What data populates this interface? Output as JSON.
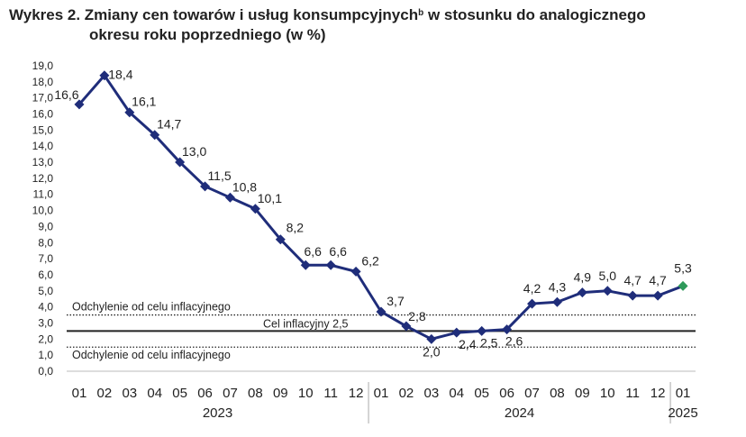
{
  "title": {
    "line1_main": "Wykres 2. Zmiany cen towarów i usług konsumpcyjnych",
    "line1_sup": "b",
    "line1_rest": " w stosunku do analogicznego",
    "line2": "okresu roku poprzedniego (w %)"
  },
  "colors": {
    "series": "#1f2d7a",
    "last_point": "#2e9a5a",
    "reference": "#222222",
    "grid": "#dddddd"
  },
  "chart_data": {
    "type": "line",
    "title": "Wykres 2. Zmiany cen towarów i usług konsumpcyjnych w stosunku do analogicznego okresu roku poprzedniego (w %)",
    "categories": [
      "01",
      "02",
      "03",
      "04",
      "05",
      "06",
      "07",
      "08",
      "09",
      "10",
      "11",
      "12",
      "01",
      "02",
      "03",
      "04",
      "05",
      "06",
      "07",
      "08",
      "09",
      "10",
      "11",
      "12",
      "01"
    ],
    "years": [
      {
        "label": "2023",
        "from": 0,
        "to": 11
      },
      {
        "label": "2024",
        "from": 12,
        "to": 23
      },
      {
        "label": "2025",
        "from": 24,
        "to": 24
      }
    ],
    "series": [
      {
        "values": [
          16.6,
          18.4,
          16.1,
          14.7,
          13.0,
          11.5,
          10.8,
          10.1,
          8.2,
          6.6,
          6.6,
          6.2,
          3.7,
          2.8,
          2.0,
          2.4,
          2.5,
          2.6,
          4.2,
          4.3,
          4.9,
          5.0,
          4.7,
          4.7,
          5.3
        ],
        "labels": [
          "16,6",
          "18,4",
          "16,1",
          "14,7",
          "13,0",
          "11,5",
          "10,8",
          "10,1",
          "8,2",
          "6,6",
          "6,6",
          "6,2",
          "3,7",
          "2,8",
          "2,0",
          "2,4",
          "2,5",
          "2,6",
          "4,2",
          "4,3",
          "4,9",
          "5,0",
          "4,7",
          "4,7",
          "5,3"
        ]
      }
    ],
    "reference_lines": [
      {
        "value": 3.5,
        "style": "dotted",
        "label": "Odchylenie od celu inflacyjnego"
      },
      {
        "value": 2.5,
        "style": "solid",
        "label": "Cel inflacyjny 2,5"
      },
      {
        "value": 1.5,
        "style": "dotted",
        "label": "Odchylenie od celu inflacyjnego"
      }
    ],
    "ylim": [
      0,
      19
    ],
    "ytick_labels": [
      "0,0",
      "1,0",
      "2,0",
      "3,0",
      "4,0",
      "5,0",
      "6,0",
      "7,0",
      "8,0",
      "9,0",
      "10,0",
      "11,0",
      "12,0",
      "13,0",
      "14,0",
      "15,0",
      "16,0",
      "17,0",
      "18,0",
      "19,0"
    ],
    "grid": false,
    "legend": "none",
    "xlabel": "",
    "ylabel": ""
  }
}
